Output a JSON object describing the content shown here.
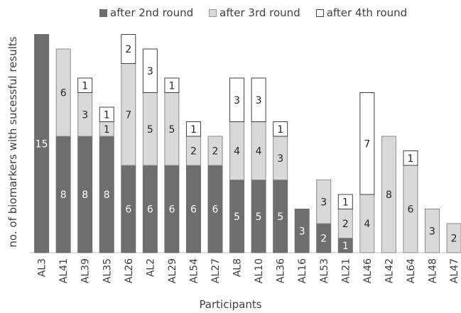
{
  "chart_data": {
    "type": "bar",
    "stacked": true,
    "title": "",
    "xlabel": "Participants",
    "ylabel": "no. of biomarkers with sucessful results",
    "ylim": [
      0,
      15
    ],
    "grid": false,
    "legend_position": "top",
    "categories": [
      "AL3",
      "AL41",
      "AL39",
      "AL35",
      "AL26",
      "AL2",
      "AL29",
      "AL54",
      "AL27",
      "AL8",
      "AL10",
      "AL36",
      "AL16",
      "AL53",
      "AL21",
      "AL46",
      "AL42",
      "AL64",
      "AL48",
      "AL47"
    ],
    "series": [
      {
        "name": "after 2nd round",
        "color": "#6e6e6e",
        "values": [
          15,
          8,
          8,
          8,
          6,
          6,
          6,
          6,
          6,
          5,
          5,
          5,
          3,
          2,
          1,
          0,
          0,
          0,
          0,
          0
        ],
        "labels": [
          "15",
          "8",
          "8",
          "8",
          "6",
          "6",
          "6",
          "6",
          "6",
          "5",
          "5",
          "5",
          "3",
          "2",
          "1",
          "",
          "",
          "",
          "",
          ""
        ]
      },
      {
        "name": "after 3rd round",
        "color": "#d9d9d9",
        "values": [
          0,
          6,
          3,
          1,
          7,
          5,
          5,
          2,
          2,
          4,
          4,
          3,
          0,
          3,
          2,
          4,
          8,
          6,
          3,
          2
        ],
        "labels": [
          "",
          "6",
          "3",
          "1",
          "7",
          "5",
          "5",
          "2",
          "2",
          "4",
          "4",
          "3",
          "",
          "3",
          "2",
          "4",
          "8",
          "6",
          "3",
          "2"
        ]
      },
      {
        "name": "after 4th round",
        "color": "#ffffff",
        "values": [
          0,
          0,
          1,
          1,
          2,
          3,
          1,
          1,
          0,
          3,
          3,
          1,
          0,
          0,
          1,
          7,
          0,
          1,
          0,
          0
        ],
        "labels": [
          "",
          "",
          "1",
          "1",
          "2",
          "3",
          "1",
          "1",
          "",
          "3",
          "3",
          "1",
          "",
          "",
          "1",
          "7",
          "",
          "1",
          "",
          ""
        ]
      }
    ]
  }
}
